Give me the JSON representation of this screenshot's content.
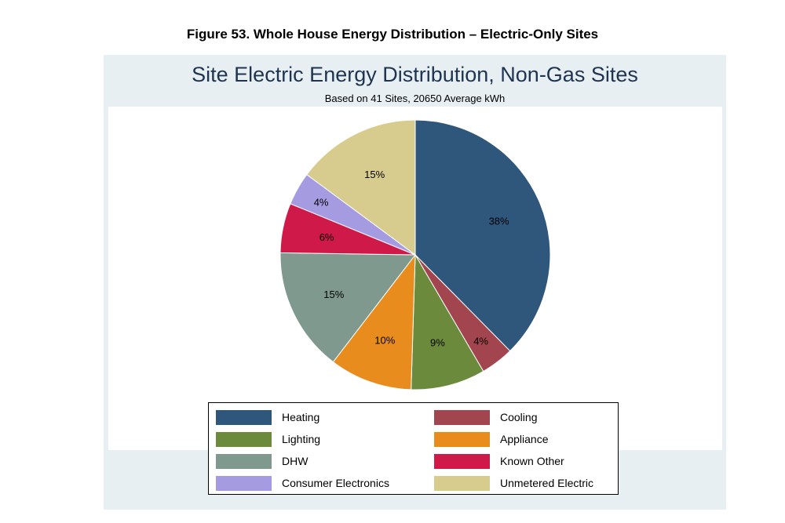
{
  "figure_caption": "Figure 53.  Whole House Energy Distribution – Electric-Only Sites",
  "chart_data": {
    "type": "pie",
    "title": "Site Electric Energy Distribution, Non-Gas Sites",
    "subtitle": "Based on 41 Sites, 20650 Average kWh",
    "slices": [
      {
        "name": "Heating",
        "value": 38,
        "label": "38%",
        "color": "#2f577c"
      },
      {
        "name": "Cooling",
        "value": 4,
        "label": "4%",
        "color": "#a3454f"
      },
      {
        "name": "Lighting",
        "value": 9,
        "label": "9%",
        "color": "#6c8a3c"
      },
      {
        "name": "Appliance",
        "value": 10,
        "label": "10%",
        "color": "#e88c1d"
      },
      {
        "name": "DHW",
        "value": 15,
        "label": "15%",
        "color": "#7f998e"
      },
      {
        "name": "Known Other",
        "value": 6,
        "label": "6%",
        "color": "#cf1949"
      },
      {
        "name": "Consumer Electronics",
        "value": 4,
        "label": "4%",
        "color": "#a59be0"
      },
      {
        "name": "Unmetered Electric",
        "value": 15,
        "label": "15%",
        "color": "#d7cc8e"
      }
    ],
    "start": "12 o'clock",
    "direction": "clockwise",
    "legend_placement": "bottom"
  }
}
